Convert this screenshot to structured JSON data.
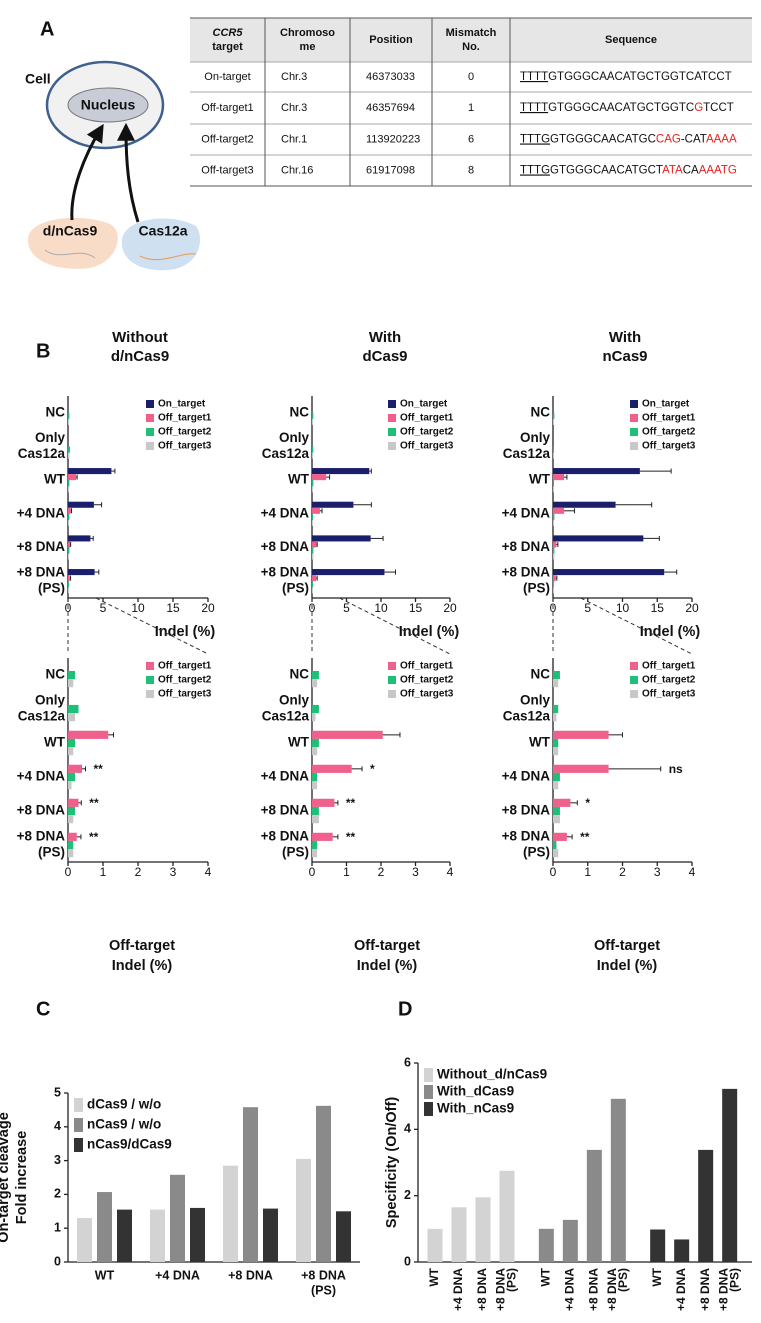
{
  "panel_a": {
    "label": "A",
    "diagram": {
      "cell": "Cell",
      "nucleus": "Nucleus",
      "effectors": [
        "d/nCas9",
        "Cas12a"
      ]
    },
    "table": {
      "header": [
        [
          "CCR5",
          "target"
        ],
        [
          "Chromoso",
          "me"
        ],
        [
          "Position"
        ],
        [
          "Mismatch",
          "No."
        ],
        [
          "Sequence"
        ]
      ],
      "rows": [
        [
          "On-target",
          "Chr.3",
          "46373033",
          0,
          [
            {
              "text": "TTTT",
              "underline": true
            },
            {
              "text": "GTGGGCAACATGCTGGTCATCCT"
            }
          ]
        ],
        [
          "Off-target1",
          "Chr.3",
          "46357694",
          1,
          [
            {
              "text": "TTTT",
              "underline": true
            },
            {
              "text": "GTGGGCAACATGCTGGTC"
            },
            {
              "text": "G",
              "color": "#e8201c"
            },
            {
              "text": "TCCT"
            }
          ]
        ],
        [
          "Off-target2",
          "Chr.1",
          "113920223",
          6,
          [
            {
              "text": "TTTG",
              "underline": true
            },
            {
              "text": "GTGGGCAACATGC"
            },
            {
              "text": "CAG",
              "color": "#e8201c"
            },
            {
              "text": "-CAT"
            },
            {
              "text": "AAAA",
              "color": "#e8201c"
            }
          ]
        ],
        [
          "Off-target3",
          "Chr.16",
          "61917098",
          8,
          [
            {
              "text": "TTTG",
              "underline": true
            },
            {
              "text": "GTGGGCAACATGCT"
            },
            {
              "text": "ATA",
              "color": "#e8201c"
            },
            {
              "text": "CA"
            },
            {
              "text": "AAATG",
              "color": "#e8201c"
            }
          ]
        ]
      ]
    }
  },
  "panel_b": {
    "label": "B"
  },
  "panel_c": {
    "label": "C"
  },
  "panel_d": {
    "label": "D"
  },
  "chart_data": [
    {
      "type": "hbar",
      "title": [
        "Without",
        "d/nCas9"
      ],
      "xlabel": [
        "Indel (%)"
      ],
      "categories": [
        [
          "NC"
        ],
        [
          "Only",
          "Cas12a"
        ],
        [
          "WT"
        ],
        [
          "+4 DNA"
        ],
        [
          "+8 DNA"
        ],
        [
          "+8 DNA",
          "(PS)"
        ]
      ],
      "xlim": [
        0,
        20
      ],
      "xticks": [
        0,
        5,
        10,
        15,
        20
      ],
      "legend": "upper right",
      "series": [
        {
          "name": "On_target",
          "color": "#1b1f6b",
          "values": [
            0,
            0,
            6.2,
            3.7,
            3.2,
            3.8
          ],
          "errors": [
            null,
            null,
            0.5,
            1.1,
            0.4,
            0.6
          ]
        },
        {
          "name": "Off_target1",
          "color": "#f0608c",
          "values": [
            0,
            0,
            1.15,
            0.4,
            0.3,
            0.25
          ],
          "errors": [
            null,
            null,
            0.15,
            0.1,
            0.08,
            0.12
          ]
        },
        {
          "name": "Off_target2",
          "color": "#1fbf78",
          "values": [
            0.2,
            0.3,
            0.2,
            0.2,
            0.2,
            0.15
          ]
        },
        {
          "name": "Off_target3",
          "color": "#c8c8c8",
          "values": [
            0.15,
            0.2,
            0.15,
            0.1,
            0.15,
            0.15
          ]
        }
      ]
    },
    {
      "type": "hbar",
      "title": [
        "With",
        "dCas9"
      ],
      "xlabel": [
        "Indel (%)"
      ],
      "categories": [
        [
          "NC"
        ],
        [
          "Only",
          "Cas12a"
        ],
        [
          "WT"
        ],
        [
          "+4 DNA"
        ],
        [
          "+8 DNA"
        ],
        [
          "+8 DNA",
          "(PS)"
        ]
      ],
      "xlim": [
        0,
        20
      ],
      "xticks": [
        0,
        5,
        10,
        15,
        20
      ],
      "legend": "upper right",
      "series": [
        {
          "name": "On_target",
          "color": "#1b1f6b",
          "values": [
            0,
            0,
            8.3,
            6,
            8.5,
            10.5
          ],
          "errors": [
            null,
            null,
            0.3,
            2.6,
            1.8,
            1.6
          ]
        },
        {
          "name": "Off_target1",
          "color": "#f0608c",
          "values": [
            0,
            0,
            2.05,
            1.15,
            0.65,
            0.6
          ],
          "errors": [
            null,
            null,
            0.5,
            0.3,
            0.1,
            0.15
          ]
        },
        {
          "name": "Off_target2",
          "color": "#1fbf78",
          "values": [
            0.2,
            0.2,
            0.2,
            0.15,
            0.2,
            0.15
          ]
        },
        {
          "name": "Off_target3",
          "color": "#c8c8c8",
          "values": [
            0.15,
            0.1,
            0.15,
            0.15,
            0.2,
            0.15
          ]
        }
      ]
    },
    {
      "type": "hbar",
      "title": [
        "With",
        "nCas9"
      ],
      "xlabel": [
        "Indel (%)"
      ],
      "categories": [
        [
          "NC"
        ],
        [
          "Only",
          "Cas12a"
        ],
        [
          "WT"
        ],
        [
          "+4 DNA"
        ],
        [
          "+8 DNA"
        ],
        [
          "+8 DNA",
          "(PS)"
        ]
      ],
      "xlim": [
        0,
        20
      ],
      "xticks": [
        0,
        5,
        10,
        15,
        20
      ],
      "legend": "upper right",
      "series": [
        {
          "name": "On_target",
          "color": "#1b1f6b",
          "values": [
            0,
            0,
            12.5,
            9,
            13,
            16
          ],
          "errors": [
            null,
            null,
            4.5,
            5.2,
            2.3,
            1.8
          ]
        },
        {
          "name": "Off_target1",
          "color": "#f0608c",
          "values": [
            0,
            0,
            1.6,
            1.6,
            0.5,
            0.4
          ],
          "errors": [
            null,
            null,
            0.4,
            1.5,
            0.2,
            0.15
          ]
        },
        {
          "name": "Off_target2",
          "color": "#1fbf78",
          "values": [
            0.2,
            0.15,
            0.15,
            0.2,
            0.2,
            0.1
          ]
        },
        {
          "name": "Off_target3",
          "color": "#c8c8c8",
          "values": [
            0.15,
            0.1,
            0.15,
            0.15,
            0.2,
            0.15
          ]
        }
      ]
    },
    {
      "type": "hbar",
      "xlabel": [
        "Off-target",
        "Indel (%)"
      ],
      "categories": [
        [
          "NC"
        ],
        [
          "Only",
          "Cas12a"
        ],
        [
          "WT"
        ],
        [
          "+4 DNA"
        ],
        [
          "+8 DNA"
        ],
        [
          "+8 DNA",
          "(PS)"
        ]
      ],
      "xlim": [
        0,
        4
      ],
      "xticks": [
        0,
        1,
        2,
        3,
        4
      ],
      "legend": "upper right",
      "annotations": [
        null,
        null,
        null,
        "**",
        "**",
        "**"
      ],
      "series": [
        {
          "name": "Off_target1",
          "color": "#f0608c",
          "values": [
            0,
            0,
            1.15,
            0.4,
            0.3,
            0.25
          ],
          "errors": [
            null,
            null,
            0.15,
            0.1,
            0.08,
            0.12
          ]
        },
        {
          "name": "Off_target2",
          "color": "#1fbf78",
          "values": [
            0.2,
            0.3,
            0.2,
            0.2,
            0.2,
            0.15
          ]
        },
        {
          "name": "Off_target3",
          "color": "#c8c8c8",
          "values": [
            0.15,
            0.2,
            0.15,
            0.1,
            0.15,
            0.15
          ]
        }
      ]
    },
    {
      "type": "hbar",
      "xlabel": [
        "Off-target",
        "Indel (%)"
      ],
      "categories": [
        [
          "NC"
        ],
        [
          "Only",
          "Cas12a"
        ],
        [
          "WT"
        ],
        [
          "+4 DNA"
        ],
        [
          "+8 DNA"
        ],
        [
          "+8 DNA",
          "(PS)"
        ]
      ],
      "xlim": [
        0,
        4
      ],
      "xticks": [
        0,
        1,
        2,
        3,
        4
      ],
      "legend": "upper right",
      "annotations": [
        null,
        null,
        null,
        "*",
        "**",
        "**"
      ],
      "series": [
        {
          "name": "Off_target1",
          "color": "#f0608c",
          "values": [
            0,
            0,
            2.05,
            1.15,
            0.65,
            0.6
          ],
          "errors": [
            null,
            null,
            0.5,
            0.3,
            0.1,
            0.15
          ]
        },
        {
          "name": "Off_target2",
          "color": "#1fbf78",
          "values": [
            0.2,
            0.2,
            0.2,
            0.15,
            0.2,
            0.15
          ]
        },
        {
          "name": "Off_target3",
          "color": "#c8c8c8",
          "values": [
            0.15,
            0.1,
            0.15,
            0.15,
            0.2,
            0.15
          ]
        }
      ]
    },
    {
      "type": "hbar",
      "xlabel": [
        "Off-target",
        "Indel (%)"
      ],
      "categories": [
        [
          "NC"
        ],
        [
          "Only",
          "Cas12a"
        ],
        [
          "WT"
        ],
        [
          "+4 DNA"
        ],
        [
          "+8 DNA"
        ],
        [
          "+8 DNA",
          "(PS)"
        ]
      ],
      "xlim": [
        0,
        4
      ],
      "xticks": [
        0,
        1,
        2,
        3,
        4
      ],
      "legend": "upper right",
      "annotations": [
        null,
        null,
        null,
        "ns",
        "*",
        "**"
      ],
      "series": [
        {
          "name": "Off_target1",
          "color": "#f0608c",
          "values": [
            0,
            0,
            1.6,
            1.6,
            0.5,
            0.4
          ],
          "errors": [
            null,
            null,
            0.4,
            1.5,
            0.2,
            0.15
          ]
        },
        {
          "name": "Off_target2",
          "color": "#1fbf78",
          "values": [
            0.2,
            0.15,
            0.15,
            0.2,
            0.2,
            0.1
          ]
        },
        {
          "name": "Off_target3",
          "color": "#c8c8c8",
          "values": [
            0.15,
            0.1,
            0.15,
            0.15,
            0.2,
            0.15
          ]
        }
      ]
    },
    {
      "type": "bar",
      "ylabel": [
        "On-target cleavage",
        "Fold increase"
      ],
      "categories": [
        [
          "WT"
        ],
        [
          "+4 DNA"
        ],
        [
          "+8 DNA"
        ],
        [
          "+8 DNA",
          "(PS)"
        ]
      ],
      "ylim": [
        0,
        5
      ],
      "yticks": [
        0,
        1,
        2,
        3,
        4,
        5
      ],
      "legend": "upper left",
      "series": [
        {
          "name": "dCas9 / w/o",
          "color": "#d3d3d3",
          "values": [
            1.3,
            1.55,
            2.85,
            3.05
          ]
        },
        {
          "name": "nCas9 / w/o",
          "color": "#8a8a8a",
          "values": [
            2.07,
            2.58,
            4.58,
            4.62
          ]
        },
        {
          "name": "nCas9/dCas9",
          "color": "#333333",
          "values": [
            1.55,
            1.6,
            1.58,
            1.5
          ]
        }
      ]
    },
    {
      "type": "bar",
      "group_by": "series",
      "ylabel": [
        "Specificity (On/Off)"
      ],
      "categories": [
        [
          "WT"
        ],
        [
          "+4 DNA"
        ],
        [
          "+8 DNA"
        ],
        [
          "+8 DNA",
          "(PS)"
        ]
      ],
      "ylim": [
        0,
        6
      ],
      "yticks": [
        0,
        2,
        4,
        6
      ],
      "legend": "upper left",
      "series": [
        {
          "name": "Without_d/nCas9",
          "color": "#d3d3d3",
          "values": [
            1.0,
            1.65,
            1.95,
            2.75
          ]
        },
        {
          "name": "With_dCas9",
          "color": "#8a8a8a",
          "values": [
            1.0,
            1.27,
            3.38,
            4.92
          ]
        },
        {
          "name": "With_nCas9",
          "color": "#333333",
          "values": [
            0.98,
            0.68,
            3.38,
            5.22
          ]
        }
      ]
    }
  ]
}
